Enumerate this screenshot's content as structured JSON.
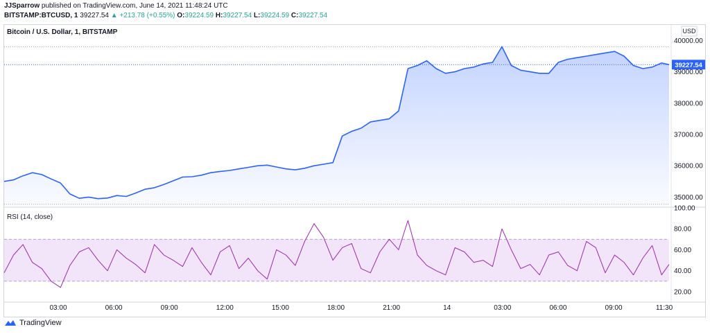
{
  "header": {
    "publisher": "JJSparrow",
    "published_text": "published on TradingView.com, June 14, 2021 11:48:24 UTC",
    "symbol": "BITSTAMP:BTCUSD, 1",
    "last": "39227.54",
    "change": "▲ +213.78 (+0.55%)",
    "o_label": "O:",
    "o_val": "39224.59",
    "h_label": "H:",
    "h_val": "39227.54",
    "l_label": "L:",
    "l_val": "39224.59",
    "c_label": "C:",
    "c_val": "39227.54"
  },
  "chart_data": [
    {
      "type": "area",
      "title": "Bitcoin / U.S. Dollar, 1, BITSTAMP",
      "currency": "USD",
      "last_price_label": "39227.54",
      "ylim": [
        34700,
        40450
      ],
      "y_ticks": [
        35000,
        36000,
        37000,
        38000,
        39000,
        40000
      ],
      "y_tick_labels": [
        "35000.00",
        "36000.00",
        "37000.00",
        "38000.00",
        "39000.00",
        "40000.00"
      ],
      "colors": {
        "line": "#2962ff",
        "fill": "#bbd5fb"
      },
      "x_labels": [
        "03:00",
        "06:00",
        "09:00",
        "12:00",
        "15:00",
        "18:00",
        "21:00",
        "14",
        "03:00",
        "06:00",
        "09:00",
        "11:30"
      ],
      "x": [
        0,
        0.5,
        1,
        1.5,
        2,
        2.5,
        3,
        3.5,
        4,
        4.5,
        5,
        5.5,
        6,
        6.5,
        7,
        7.5,
        8,
        8.5,
        9,
        9.5,
        10,
        10.5,
        11,
        11.5,
        12,
        12.5,
        13,
        13.5,
        14,
        14.5,
        15,
        15.5,
        16,
        16.5,
        17,
        17.5,
        18,
        18.5,
        19,
        19.5,
        20,
        20.5,
        21,
        21.5,
        22,
        22.5,
        23,
        23.5,
        24,
        24.5,
        25,
        25.5,
        26,
        26.5,
        27,
        27.5,
        28,
        28.5,
        29,
        29.5,
        30,
        30.5,
        31,
        31.5,
        32,
        32.5,
        33,
        33.5,
        34,
        34.5,
        35,
        35.4
      ],
      "y": [
        35500,
        35550,
        35680,
        35780,
        35720,
        35580,
        35450,
        35100,
        34960,
        35000,
        34950,
        34970,
        35050,
        35020,
        35130,
        35250,
        35300,
        35400,
        35520,
        35640,
        35650,
        35700,
        35780,
        35820,
        35850,
        35900,
        35950,
        36000,
        36020,
        35960,
        35900,
        35870,
        35920,
        36000,
        36050,
        36100,
        36950,
        37100,
        37200,
        37400,
        37450,
        37500,
        37750,
        39100,
        39200,
        39350,
        39100,
        38950,
        39000,
        39100,
        39150,
        39250,
        39300,
        39800,
        39200,
        39050,
        39000,
        38950,
        38950,
        39300,
        39400,
        39450,
        39500,
        39550,
        39600,
        39650,
        39500,
        39200,
        39100,
        39150,
        39280,
        39227.54
      ]
    },
    {
      "type": "line",
      "title": "RSI (14, close)",
      "ylim": [
        10,
        100
      ],
      "y_ticks": [
        20,
        40,
        60,
        80,
        100
      ],
      "y_tick_labels": [
        "20.00",
        "40.00",
        "60.00",
        "80.00",
        "100.00"
      ],
      "band": [
        30,
        70
      ],
      "colors": {
        "line": "#9c27b0",
        "band_fill": "#f3e5f9",
        "band_edge": "#b39ddb"
      },
      "x": [
        0,
        0.5,
        1,
        1.5,
        2,
        2.5,
        3,
        3.5,
        4,
        4.5,
        5,
        5.5,
        6,
        6.5,
        7,
        7.5,
        8,
        8.5,
        9,
        9.5,
        10,
        10.5,
        11,
        11.5,
        12,
        12.5,
        13,
        13.5,
        14,
        14.5,
        15,
        15.5,
        16,
        16.5,
        17,
        17.5,
        18,
        18.5,
        19,
        19.5,
        20,
        20.5,
        21,
        21.5,
        22,
        22.5,
        23,
        23.5,
        24,
        24.5,
        25,
        25.5,
        26,
        26.5,
        27,
        27.5,
        28,
        28.5,
        29,
        29.5,
        30,
        30.5,
        31,
        31.5,
        32,
        32.5,
        33,
        33.5,
        34,
        34.5,
        35,
        35.4
      ],
      "y": [
        38,
        55,
        65,
        48,
        42,
        30,
        24,
        45,
        58,
        62,
        50,
        40,
        60,
        52,
        46,
        38,
        65,
        55,
        50,
        44,
        62,
        48,
        36,
        58,
        64,
        42,
        52,
        40,
        32,
        60,
        55,
        45,
        68,
        85,
        72,
        50,
        62,
        66,
        42,
        38,
        58,
        70,
        60,
        88,
        55,
        45,
        40,
        36,
        62,
        58,
        48,
        50,
        44,
        80,
        60,
        42,
        46,
        36,
        55,
        58,
        45,
        40,
        68,
        62,
        38,
        55,
        48,
        36,
        52,
        64,
        36,
        46
      ]
    }
  ],
  "footer": {
    "brand": "TradingView"
  }
}
